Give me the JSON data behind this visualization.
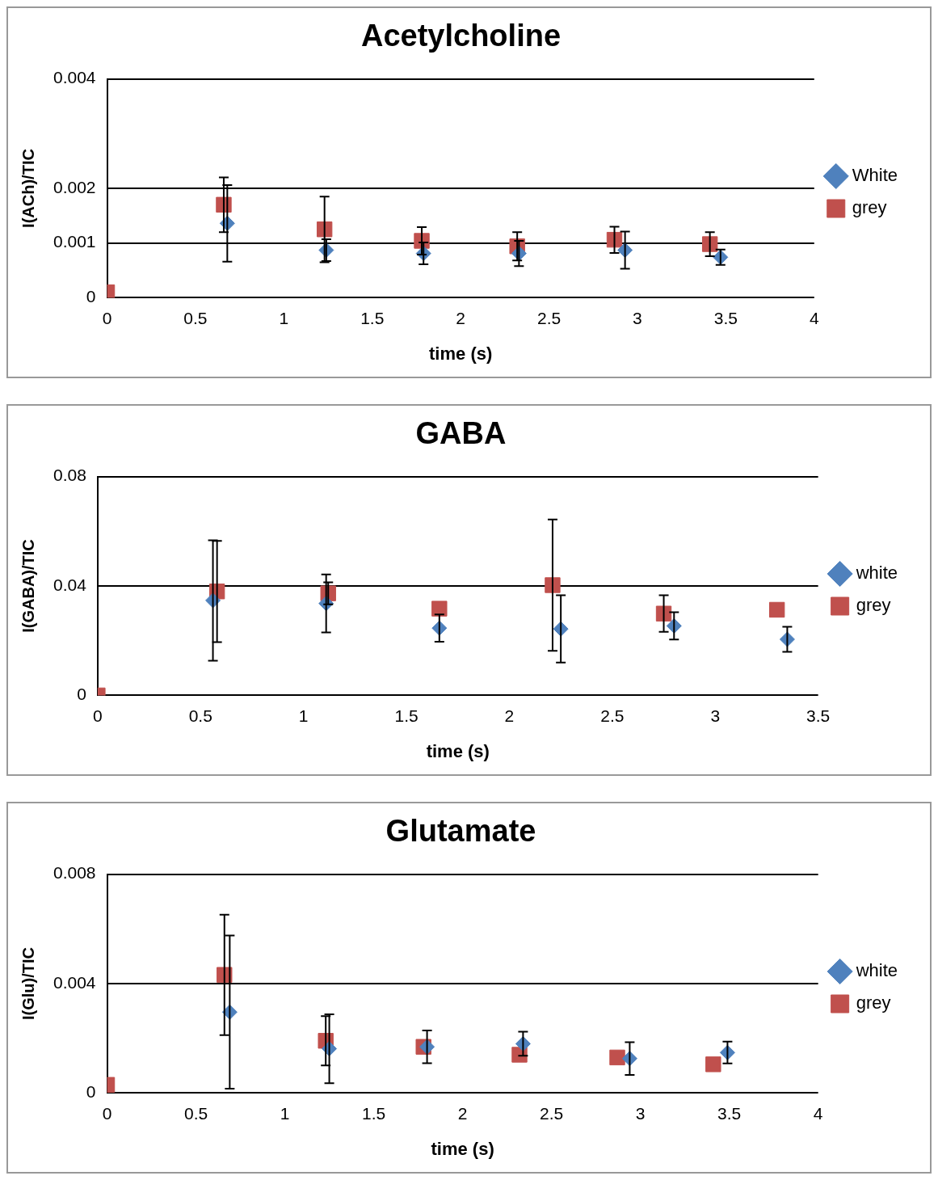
{
  "chart_data": [
    {
      "type": "scatter",
      "title": "Acetylcholine",
      "xlabel": "time (s)",
      "ylabel": "I(ACh)/TIC",
      "xlim": [
        0,
        4
      ],
      "xticks": [
        0,
        0.5,
        1,
        1.5,
        2,
        2.5,
        3,
        3.5,
        4
      ],
      "ylim": [
        0,
        0.004
      ],
      "yticks": [
        0,
        0.001,
        0.002,
        0.004
      ],
      "grid": "y",
      "legend": "right",
      "series": [
        {
          "name": "White",
          "color": "#4f81bd",
          "marker": "diamond",
          "x": [
            0.68,
            1.24,
            1.79,
            2.33,
            2.93,
            3.47
          ],
          "values": [
            0.00136,
            0.00087,
            0.00081,
            0.00081,
            0.00087,
            0.00074
          ],
          "errors": [
            0.0007,
            0.0002,
            0.0002,
            0.00023,
            0.00034,
            0.00014
          ]
        },
        {
          "name": "grey",
          "color": "#c0504d",
          "marker": "square",
          "x": [
            0,
            0.66,
            1.23,
            1.78,
            2.32,
            2.87,
            3.41
          ],
          "values": [
            0.0001,
            0.0017,
            0.00125,
            0.00104,
            0.00094,
            0.00106,
            0.00098
          ],
          "errors": [
            null,
            0.0005,
            0.0006,
            0.00025,
            0.00026,
            0.00024,
            0.00022
          ]
        }
      ]
    },
    {
      "type": "scatter",
      "title": "GABA",
      "xlabel": "time (s)",
      "ylabel": "I(GABA)/TIC",
      "xlim": [
        0,
        3.5
      ],
      "xticks": [
        0,
        0.5,
        1,
        1.5,
        2,
        2.5,
        3,
        3.5
      ],
      "ylim": [
        0,
        0.08
      ],
      "yticks": [
        0,
        0.04,
        0.08
      ],
      "grid": "y",
      "legend": "right",
      "series": [
        {
          "name": "white",
          "color": "#4f81bd",
          "marker": "diamond",
          "x": [
            0.56,
            1.11,
            1.66,
            2.25,
            2.8,
            3.35
          ],
          "values": [
            0.0347,
            0.0336,
            0.0246,
            0.0243,
            0.0254,
            0.0205
          ],
          "errors": [
            0.022,
            0.0106,
            0.005,
            0.0123,
            0.005,
            0.0046
          ]
        },
        {
          "name": "grey",
          "color": "#c0504d",
          "marker": "square",
          "x": [
            0,
            0.58,
            1.12,
            1.66,
            2.21,
            2.75,
            3.3
          ],
          "values": [
            0,
            0.038,
            0.0373,
            0.0317,
            0.0403,
            0.0299,
            0.0313
          ],
          "errors": [
            null,
            0.0185,
            0.004,
            null,
            0.024,
            0.0067,
            null
          ]
        }
      ]
    },
    {
      "type": "scatter",
      "title": "Glutamate",
      "xlabel": "time (s)",
      "ylabel": "I(Glu)/TIC",
      "xlim": [
        0,
        4
      ],
      "xticks": [
        0,
        0.5,
        1,
        1.5,
        2,
        2.5,
        3,
        3.5,
        4
      ],
      "ylim": [
        0,
        0.008
      ],
      "yticks": [
        0,
        0.004,
        0.008
      ],
      "grid": "y",
      "legend": "right",
      "series": [
        {
          "name": "white",
          "color": "#4f81bd",
          "marker": "diamond",
          "x": [
            0.69,
            1.25,
            1.8,
            2.34,
            2.94,
            3.49
          ],
          "values": [
            0.00296,
            0.00162,
            0.00169,
            0.0018,
            0.00126,
            0.00148
          ],
          "errors": [
            0.0028,
            0.00126,
            0.0006,
            0.00044,
            0.0006,
            0.0004
          ]
        },
        {
          "name": "grey",
          "color": "#c0504d",
          "marker": "square",
          "x": [
            0,
            0.66,
            1.23,
            1.78,
            2.32,
            2.87,
            3.41
          ],
          "values": [
            0.0003,
            0.00432,
            0.00191,
            0.00169,
            0.0014,
            0.0013,
            0.00105
          ],
          "errors": [
            null,
            0.0022,
            0.0009,
            null,
            null,
            null,
            null
          ]
        }
      ]
    }
  ]
}
